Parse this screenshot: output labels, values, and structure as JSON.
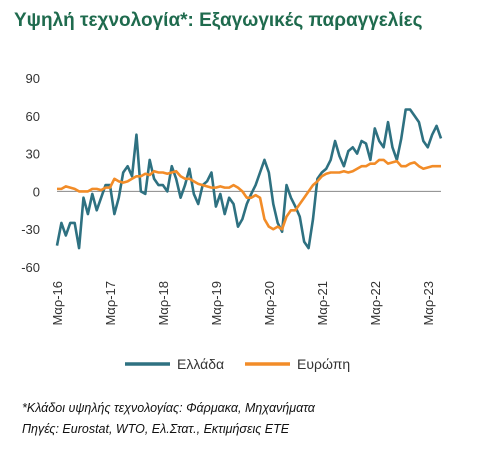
{
  "title": "Υψηλή τεχνολογία*: Εξαγωγικές παραγγελίες",
  "footnote": "*Κλάδοι υψηλής τεχνολογίας: Φάρμακα, Μηχανήματα",
  "sources": "Πηγές: Eurostat, WTO, Ελ.Στατ., Εκτιμήσεις ΕΤΕ",
  "colors": {
    "greece": "#2e7181",
    "europe": "#f28c28",
    "title": "#1f6b4e"
  },
  "chart_data": {
    "type": "line",
    "title": "Υψηλή τεχνολογία*: Εξαγωγικές παραγγελίες",
    "xlabel": "",
    "ylabel": "",
    "ylim": [
      -60,
      90
    ],
    "yticks": [
      90,
      60,
      30,
      0,
      -30,
      -60
    ],
    "grid": false,
    "legend_position": "bottom",
    "x_tick_labels": [
      "Μαρ-16",
      "Μαρ-17",
      "Μαρ-18",
      "Μαρ-19",
      "Μαρ-20",
      "Μαρ-21",
      "Μαρ-22",
      "Μαρ-23"
    ],
    "x_tick_positions": [
      0,
      12,
      24,
      36,
      48,
      60,
      72,
      84
    ],
    "x_start": "Μαρ-16",
    "x_end": "Μαρ-23",
    "x_step": "month",
    "series": [
      {
        "name": "Ελλάδα",
        "color": "#2e7181",
        "values": [
          -43,
          -25,
          -35,
          -25,
          -25,
          -45,
          -5,
          -18,
          -2,
          -15,
          -5,
          5,
          5,
          -18,
          -5,
          15,
          20,
          12,
          45,
          0,
          -2,
          25,
          10,
          5,
          5,
          0,
          20,
          10,
          -5,
          5,
          18,
          -2,
          -10,
          5,
          8,
          15,
          -12,
          -2,
          -18,
          -5,
          -10,
          -28,
          -22,
          -10,
          -2,
          5,
          15,
          25,
          15,
          -10,
          -25,
          -32,
          5,
          -5,
          -12,
          -20,
          -40,
          -45,
          -22,
          10,
          15,
          18,
          25,
          40,
          28,
          20,
          32,
          35,
          30,
          40,
          38,
          25,
          50,
          40,
          35,
          55,
          35,
          25,
          42,
          65,
          65,
          60,
          55,
          40,
          35,
          45,
          52,
          42
        ]
      },
      {
        "name": "Ευρώπη",
        "color": "#f28c28",
        "values": [
          2,
          2,
          4,
          3,
          2,
          0,
          0,
          0,
          2,
          2,
          1,
          3,
          3,
          10,
          8,
          7,
          8,
          10,
          12,
          12,
          14,
          13,
          16,
          15,
          15,
          14,
          15,
          16,
          12,
          10,
          10,
          8,
          6,
          5,
          4,
          3,
          3,
          4,
          3,
          3,
          5,
          3,
          0,
          -5,
          -5,
          -3,
          -5,
          -22,
          -28,
          -30,
          -28,
          -30,
          -20,
          -15,
          -15,
          -10,
          -5,
          0,
          5,
          8,
          12,
          14,
          15,
          15,
          15,
          16,
          15,
          16,
          18,
          20,
          20,
          22,
          22,
          25,
          25,
          22,
          23,
          24,
          20,
          20,
          22,
          23,
          20,
          18,
          19,
          20,
          20,
          20
        ]
      }
    ]
  }
}
